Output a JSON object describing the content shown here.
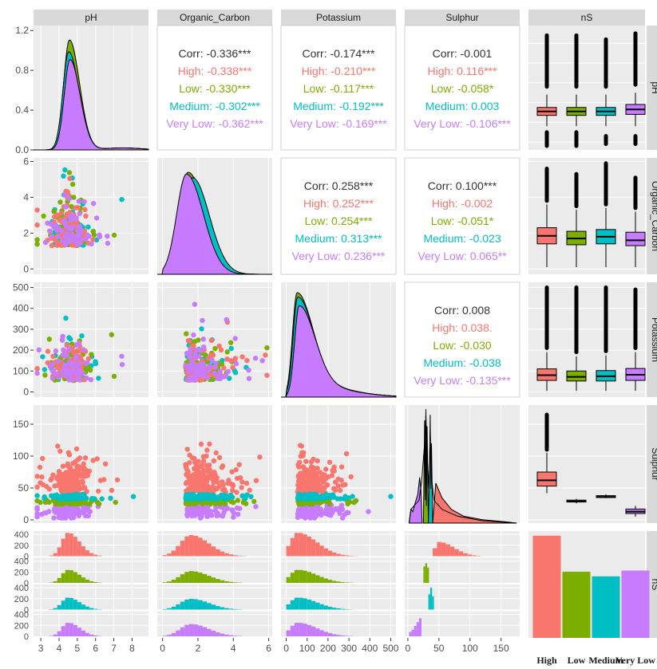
{
  "chart_data": {
    "type": "scatter-matrix",
    "variables": [
      "pH",
      "Organic_Carbon",
      "Potassium",
      "Sulphur",
      "nS"
    ],
    "groups": [
      "High",
      "Low",
      "Medium",
      "Very Low"
    ],
    "group_colors": {
      "High": "#F8766D",
      "Low": "#7CAE00",
      "Medium": "#00BFC4",
      "Very Low": "#C77CFF"
    },
    "overall_color": "#333333",
    "grid": true,
    "axes": {
      "pH": {
        "range": [
          2.6,
          8.9
        ],
        "ticks": [
          3,
          4,
          5,
          6,
          7,
          8
        ]
      },
      "Organic_Carbon": {
        "range": [
          -0.3,
          6.2
        ],
        "ticks": [
          0,
          2,
          4,
          6
        ]
      },
      "Potassium": {
        "range": [
          -25,
          525
        ],
        "ticks": [
          0,
          100,
          200,
          300,
          400,
          500
        ]
      },
      "Sulphur": {
        "range": [
          -5,
          180
        ],
        "ticks": [
          0,
          50,
          100,
          150
        ]
      },
      "pH_density": {
        "range": [
          0,
          1.25
        ],
        "ticks": [
          0.0,
          0.4,
          0.8,
          1.2
        ]
      },
      "nS_count": {
        "range": [
          0,
          460
        ],
        "ticks": [
          0,
          200,
          400
        ]
      }
    },
    "correlations": [
      {
        "row": 0,
        "col": 1,
        "lines": [
          {
            "label": "Corr: -0.336***",
            "group": "overall"
          },
          {
            "label": "High: -0.338***",
            "group": "High"
          },
          {
            "label": "Low: -0.330***",
            "group": "Low"
          },
          {
            "label": "Medium: -0.302***",
            "group": "Medium"
          },
          {
            "label": "Very Low: -0.362***",
            "group": "Very Low"
          }
        ]
      },
      {
        "row": 0,
        "col": 2,
        "lines": [
          {
            "label": "Corr: -0.174***",
            "group": "overall"
          },
          {
            "label": "High: -0.210***",
            "group": "High"
          },
          {
            "label": "Low: -0.117***",
            "group": "Low"
          },
          {
            "label": "Medium: -0.192***",
            "group": "Medium"
          },
          {
            "label": "Very Low: -0.169***",
            "group": "Very Low"
          }
        ]
      },
      {
        "row": 0,
        "col": 3,
        "lines": [
          {
            "label": "Corr: -0.001",
            "group": "overall"
          },
          {
            "label": "High: 0.116***",
            "group": "High"
          },
          {
            "label": "Low: -0.058*",
            "group": "Low"
          },
          {
            "label": "Medium: 0.003",
            "group": "Medium"
          },
          {
            "label": "Very Low: -0.106***",
            "group": "Very Low"
          }
        ]
      },
      {
        "row": 1,
        "col": 2,
        "lines": [
          {
            "label": "Corr: 0.258***",
            "group": "overall"
          },
          {
            "label": "High: 0.252***",
            "group": "High"
          },
          {
            "label": "Low: 0.254***",
            "group": "Low"
          },
          {
            "label": "Medium: 0.313***",
            "group": "Medium"
          },
          {
            "label": "Very Low: 0.236***",
            "group": "Very Low"
          }
        ]
      },
      {
        "row": 1,
        "col": 3,
        "lines": [
          {
            "label": "Corr: 0.100***",
            "group": "overall"
          },
          {
            "label": "High: -0.002",
            "group": "High"
          },
          {
            "label": "Low: -0.051*",
            "group": "Low"
          },
          {
            "label": "Medium: -0.023",
            "group": "Medium"
          },
          {
            "label": "Very Low: 0.065**",
            "group": "Very Low"
          }
        ]
      },
      {
        "row": 2,
        "col": 3,
        "lines": [
          {
            "label": "Corr: 0.008",
            "group": "overall"
          },
          {
            "label": "High: 0.038.",
            "group": "High"
          },
          {
            "label": "Low: -0.030",
            "group": "Low"
          },
          {
            "label": "Medium: -0.038",
            "group": "Medium"
          },
          {
            "label": "Very Low: -0.135***",
            "group": "Very Low"
          }
        ]
      }
    ],
    "boxplots": {
      "pH": [
        {
          "group": "High",
          "q1": 4.35,
          "median": 4.55,
          "q3": 4.75,
          "whisker_low": 3.8,
          "whisker_high": 5.4,
          "outliers": [
            2.8,
            3.2,
            3.5,
            5.8,
            6.4,
            7.0,
            7.8,
            8.4
          ]
        },
        {
          "group": "Low",
          "q1": 4.35,
          "median": 4.55,
          "q3": 4.75,
          "whisker_low": 3.8,
          "whisker_high": 5.4,
          "outliers": [
            2.8,
            3.2,
            3.5,
            5.8,
            6.3,
            7.1,
            7.7,
            8.4
          ]
        },
        {
          "group": "Medium",
          "q1": 4.35,
          "median": 4.55,
          "q3": 4.75,
          "whisker_low": 3.8,
          "whisker_high": 5.4,
          "outliers": [
            2.9,
            3.3,
            5.8,
            6.4,
            7.0,
            7.6,
            8.2
          ]
        },
        {
          "group": "Very Low",
          "q1": 4.4,
          "median": 4.65,
          "q3": 4.9,
          "whisker_low": 3.8,
          "whisker_high": 5.5,
          "outliers": [
            2.9,
            3.3,
            5.9,
            6.5,
            7.2,
            7.9,
            8.5
          ]
        }
      ],
      "Organic_Carbon": [
        {
          "group": "High",
          "q1": 1.4,
          "median": 1.85,
          "q3": 2.3,
          "whisker_low": 0.1,
          "whisker_high": 3.6,
          "outliers": [
            3.8,
            4.1,
            4.4,
            4.8,
            5.2,
            5.6
          ]
        },
        {
          "group": "Low",
          "q1": 1.35,
          "median": 1.7,
          "q3": 2.1,
          "whisker_low": 0.1,
          "whisker_high": 3.3,
          "outliers": [
            3.5,
            3.9,
            4.3,
            4.8,
            5.3
          ]
        },
        {
          "group": "Medium",
          "q1": 1.4,
          "median": 1.8,
          "q3": 2.2,
          "whisker_low": 0.1,
          "whisker_high": 3.4,
          "outliers": [
            3.6,
            4.0,
            4.5,
            5.0,
            5.4,
            5.9
          ]
        },
        {
          "group": "Very Low",
          "q1": 1.3,
          "median": 1.6,
          "q3": 2.05,
          "whisker_low": 0.1,
          "whisker_high": 3.2,
          "outliers": [
            3.4,
            3.8,
            4.2,
            4.7,
            5.1
          ]
        }
      ],
      "Potassium": [
        {
          "group": "High",
          "q1": 55,
          "median": 80,
          "q3": 110,
          "whisker_low": 5,
          "whisker_high": 190,
          "outliers": [
            210,
            240,
            270,
            300,
            340,
            380,
            420,
            460,
            500
          ]
        },
        {
          "group": "Low",
          "q1": 52,
          "median": 72,
          "q3": 100,
          "whisker_low": 5,
          "whisker_high": 170,
          "outliers": [
            190,
            220,
            250,
            290,
            330,
            370,
            410,
            450,
            500
          ]
        },
        {
          "group": "Medium",
          "q1": 52,
          "median": 75,
          "q3": 102,
          "whisker_low": 5,
          "whisker_high": 175,
          "outliers": [
            195,
            225,
            260,
            300,
            340,
            380,
            420,
            470,
            500
          ]
        },
        {
          "group": "Very Low",
          "q1": 55,
          "median": 82,
          "q3": 112,
          "whisker_low": 5,
          "whisker_high": 190,
          "outliers": [
            210,
            245,
            280,
            320,
            360,
            400,
            445,
            490
          ]
        }
      ],
      "Sulphur": [
        {
          "group": "High",
          "q1": 53,
          "median": 62,
          "q3": 75,
          "whisker_low": 42,
          "whisker_high": 105,
          "outliers": [
            110,
            118,
            126,
            134,
            142,
            150,
            158,
            165
          ]
        },
        {
          "group": "Low",
          "q1": 28,
          "median": 29,
          "q3": 31,
          "whisker_low": 26,
          "whisker_high": 33,
          "outliers": []
        },
        {
          "group": "Medium",
          "q1": 35,
          "median": 36,
          "q3": 38,
          "whisker_low": 34,
          "whisker_high": 40,
          "outliers": []
        },
        {
          "group": "Very Low",
          "q1": 10,
          "median": 13,
          "q3": 17,
          "whisker_low": 5,
          "whisker_high": 22,
          "outliers": []
        }
      ]
    },
    "counts": {
      "High": 440,
      "Low": 285,
      "Medium": 265,
      "Very Low": 290
    },
    "category_labels": [
      "High",
      "Low",
      "Medium",
      "Very Low"
    ]
  }
}
